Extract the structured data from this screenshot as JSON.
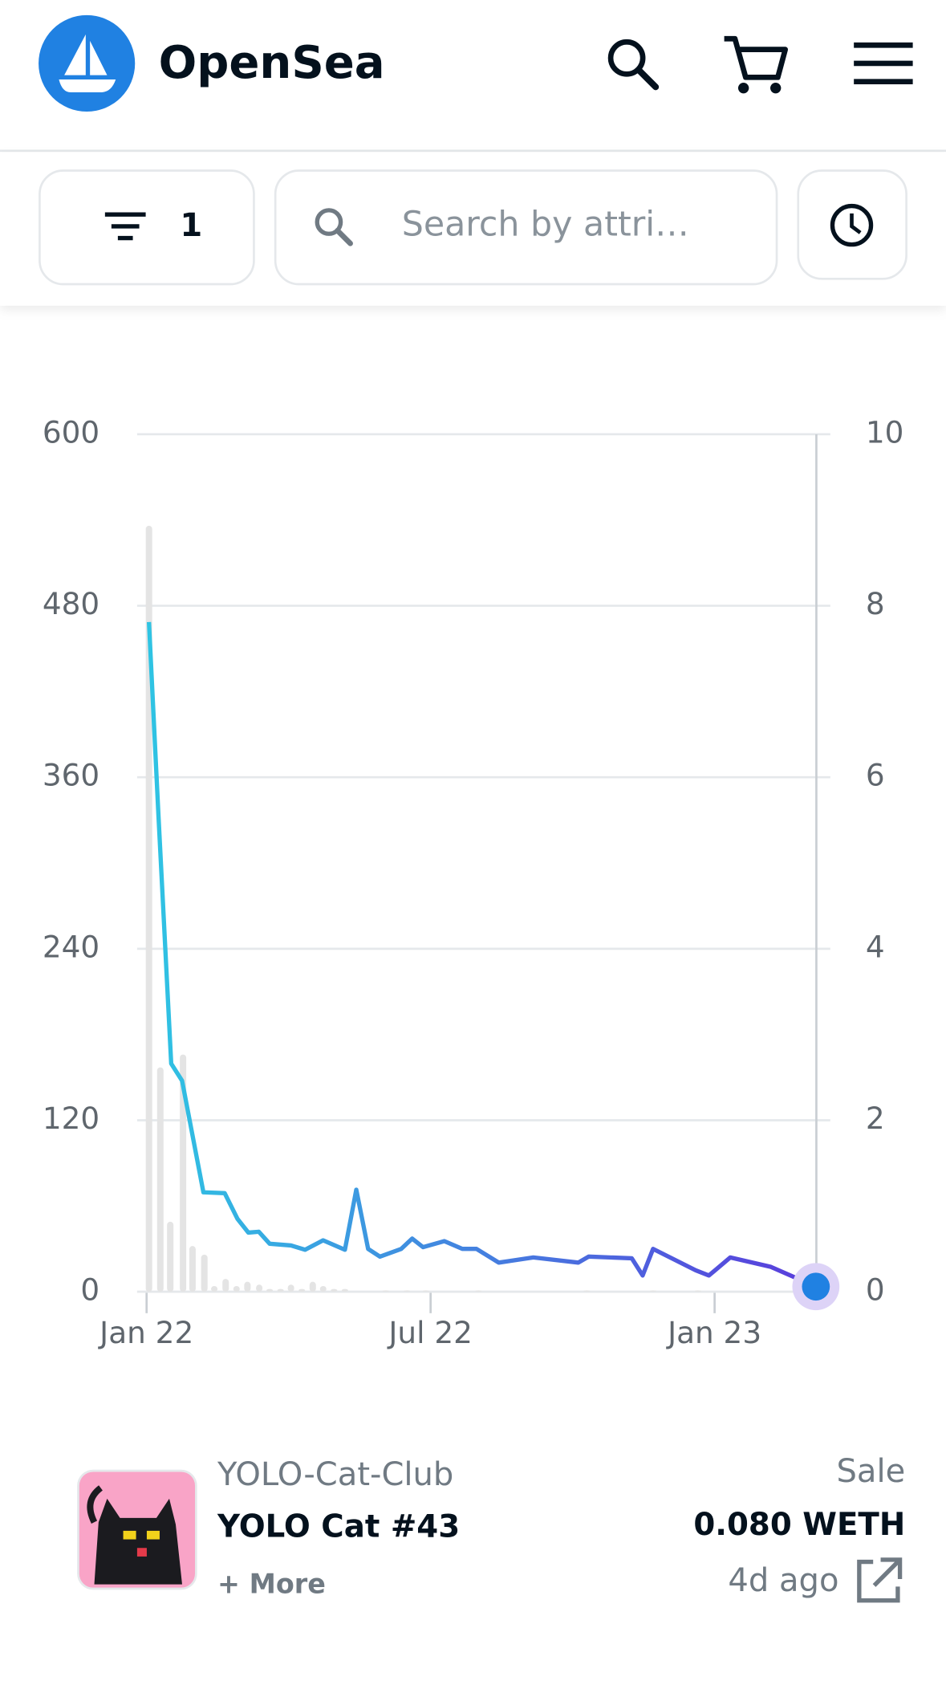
{
  "header": {
    "brand": "OpenSea"
  },
  "toolbar": {
    "filter_count": "1",
    "search_placeholder": "Search by attri…"
  },
  "chart_data": {
    "type": "combo",
    "xlim": [
      -0.2,
      14.15
    ],
    "xticks": [
      {
        "value": 0,
        "label": "Jan 22"
      },
      {
        "value": 6,
        "label": "Jul 22"
      },
      {
        "value": 12,
        "label": "Jan 23"
      }
    ],
    "ylim": [
      0,
      600
    ],
    "yticks": [
      0,
      120,
      240,
      360,
      480,
      600
    ],
    "y2lim": [
      0,
      10
    ],
    "y2ticks": [
      0,
      2,
      4,
      6,
      8,
      10
    ],
    "grid": true,
    "series": [
      {
        "type": "bar",
        "color": "#e4e4e4",
        "x": [
          0.05,
          0.29,
          0.5,
          0.77,
          0.97,
          1.22,
          1.43,
          1.67,
          1.9,
          2.13,
          2.38,
          2.6,
          2.83,
          3.05,
          3.28,
          3.51,
          3.73,
          3.96,
          4.19,
          5.05,
          5.5,
          5.9,
          7.01,
          9.3,
          10.7,
          11.65
        ],
        "values": [
          536,
          157,
          49,
          166,
          32,
          26,
          4,
          9,
          4,
          7,
          5,
          2,
          2,
          5,
          2,
          7,
          4,
          2,
          2,
          1,
          1,
          1,
          1,
          1,
          1,
          1
        ]
      },
      {
        "type": "line",
        "axis": "y2",
        "colors": [
          "#2ec6e3",
          "#5a3cdc"
        ],
        "x": [
          0.05,
          0.25,
          0.52,
          0.75,
          1.2,
          1.65,
          1.92,
          2.15,
          2.37,
          2.6,
          3.05,
          3.35,
          3.73,
          4.19,
          4.43,
          4.68,
          4.93,
          5.38,
          5.61,
          5.84,
          6.29,
          6.67,
          6.97,
          7.44,
          8.17,
          9.12,
          9.34,
          10.25,
          10.48,
          10.7,
          11.6,
          11.88,
          12.33,
          13.19,
          14.14
        ],
        "values": [
          7.81,
          5.56,
          2.66,
          2.46,
          1.16,
          1.15,
          0.85,
          0.69,
          0.7,
          0.56,
          0.54,
          0.49,
          0.6,
          0.49,
          1.19,
          0.5,
          0.41,
          0.5,
          0.62,
          0.52,
          0.59,
          0.5,
          0.5,
          0.34,
          0.4,
          0.34,
          0.41,
          0.39,
          0.19,
          0.5,
          0.25,
          0.19,
          0.4,
          0.29,
          0.06
        ]
      }
    ]
  },
  "sale": {
    "collection": "YOLO-Cat-Club",
    "item": "YOLO Cat #43",
    "more": "+ More",
    "event": "Sale",
    "price": "0.080 WETH",
    "time": "4d ago"
  }
}
